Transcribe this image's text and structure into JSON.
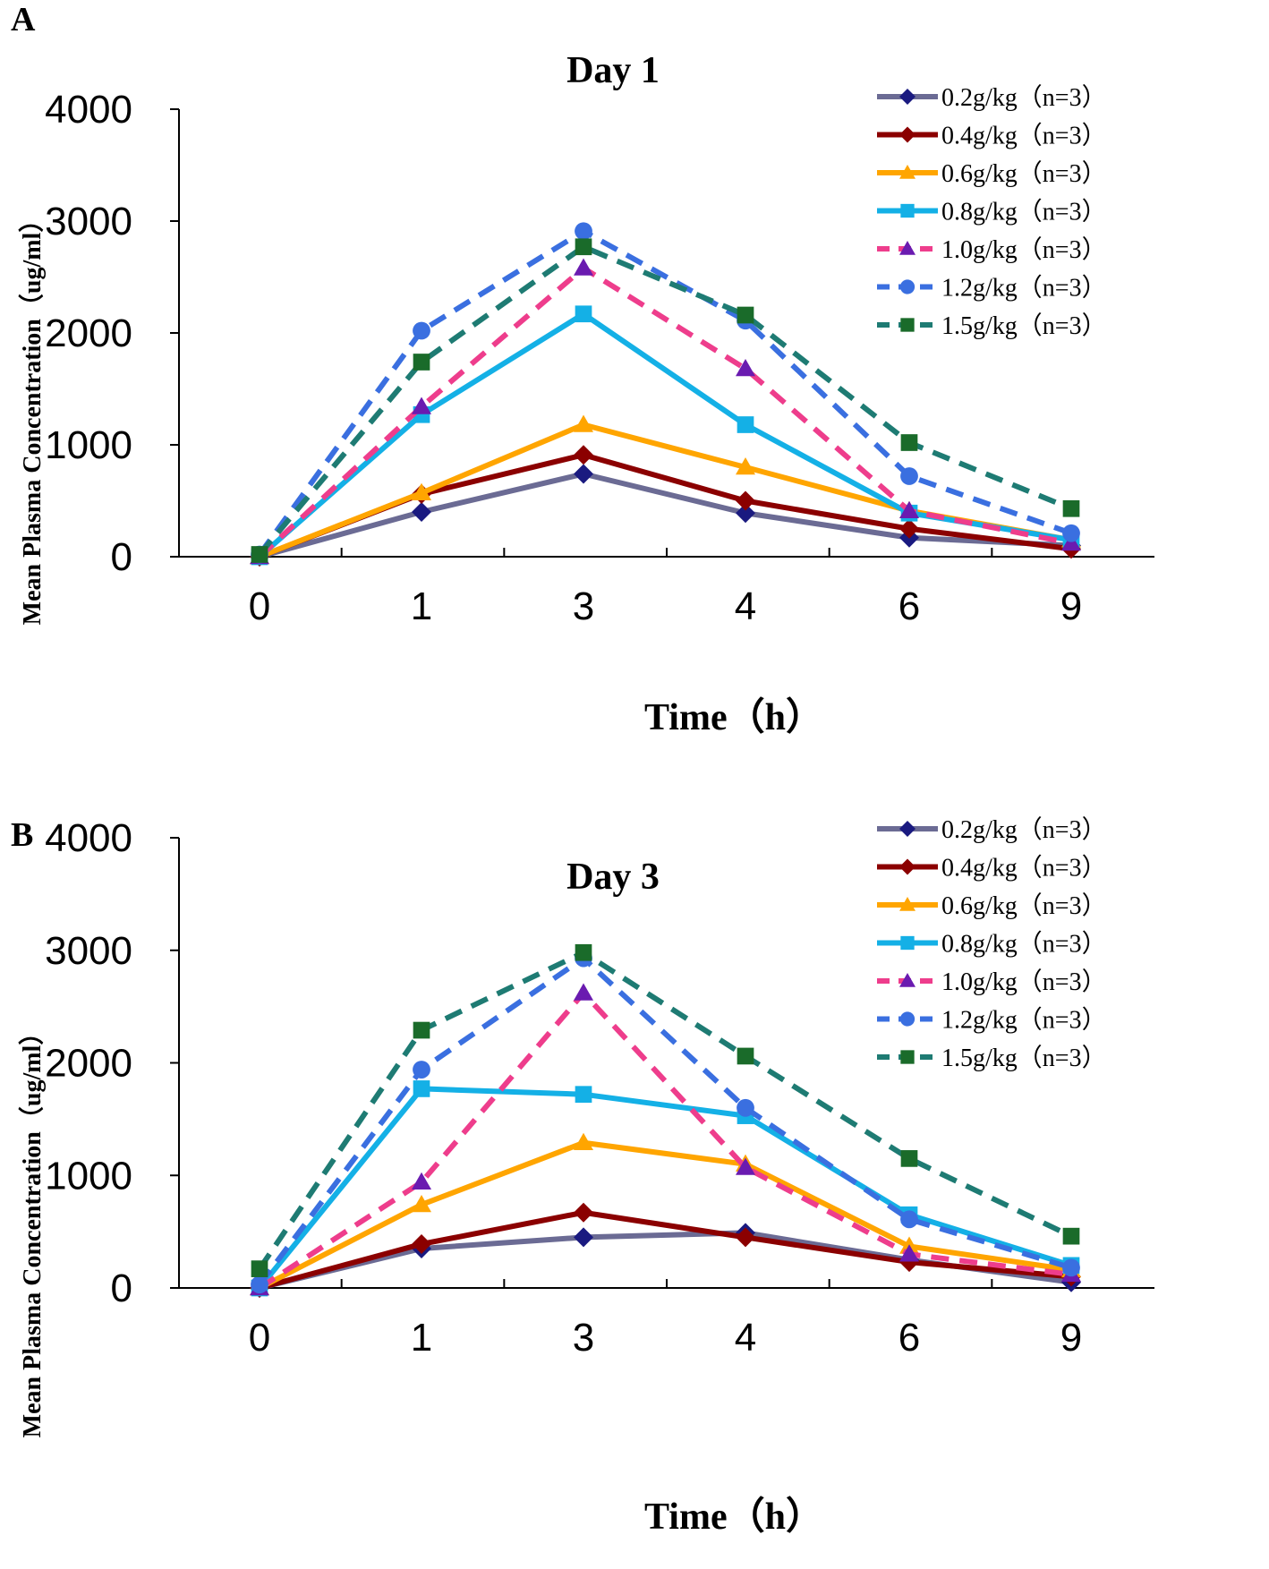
{
  "chart_data": [
    {
      "panel_label": "A",
      "type": "line",
      "title": "Day 1",
      "xlabel": "Time（h）",
      "ylabel": "Mean Plasma Concentration（ug/ml）",
      "categories": [
        "0",
        "1",
        "3",
        "4",
        "6",
        "9"
      ],
      "ylim": [
        0,
        4000
      ],
      "yticks": [
        "0",
        "1000",
        "2000",
        "3000",
        "4000"
      ],
      "legend_position": "top-right",
      "series": [
        {
          "name": "0.2g/kg（n=3）",
          "values": [
            0,
            400,
            740,
            390,
            170,
            100
          ],
          "color": "#6b6b94",
          "marker_color": "#1a1a80",
          "marker": "diamond",
          "dashed": false
        },
        {
          "name": "0.4g/kg（n=3）",
          "values": [
            0,
            560,
            910,
            500,
            250,
            70
          ],
          "color": "#8b0000",
          "marker_color": "#8b0000",
          "marker": "diamond",
          "dashed": false
        },
        {
          "name": "0.6g/kg（n=3）",
          "values": [
            0,
            570,
            1180,
            800,
            410,
            150
          ],
          "color": "#ffa500",
          "marker_color": "#ffa500",
          "marker": "triangle",
          "dashed": false
        },
        {
          "name": "0.8g/kg（n=3）",
          "values": [
            0,
            1270,
            2170,
            1180,
            390,
            150
          ],
          "color": "#14b0e6",
          "marker_color": "#14b0e6",
          "marker": "square",
          "dashed": false
        },
        {
          "name": "1.0g/kg（n=3）",
          "values": [
            0,
            1340,
            2580,
            1680,
            410,
            120
          ],
          "color": "#ee3d8c",
          "marker_color": "#6a1bb0",
          "marker": "triangle",
          "dashed": true
        },
        {
          "name": "1.2g/kg（n=3）",
          "values": [
            20,
            2020,
            2910,
            2110,
            720,
            210
          ],
          "color": "#3a6fe0",
          "marker_color": "#3a6fe0",
          "marker": "circle",
          "dashed": true
        },
        {
          "name": "1.5g/kg（n=3）",
          "values": [
            20,
            1740,
            2770,
            2160,
            1020,
            430
          ],
          "color": "#1e7b73",
          "marker_color": "#1a6b2a",
          "marker": "square",
          "dashed": true
        }
      ]
    },
    {
      "panel_label": "B",
      "type": "line",
      "title": "Day 3",
      "xlabel": "Time（h）",
      "ylabel": "Mean Plasma Concentration（ug/ml）",
      "categories": [
        "0",
        "1",
        "3",
        "4",
        "6",
        "9"
      ],
      "ylim": [
        0,
        4000
      ],
      "yticks": [
        "0",
        "1000",
        "2000",
        "3000",
        "4000"
      ],
      "legend_position": "top-right",
      "series": [
        {
          "name": "0.2g/kg（n=3）",
          "values": [
            0,
            350,
            450,
            490,
            250,
            50
          ],
          "color": "#6b6b94",
          "marker_color": "#1a1a80",
          "marker": "diamond",
          "dashed": false
        },
        {
          "name": "0.4g/kg（n=3）",
          "values": [
            0,
            390,
            670,
            450,
            230,
            100
          ],
          "color": "#8b0000",
          "marker_color": "#8b0000",
          "marker": "diamond",
          "dashed": false
        },
        {
          "name": "0.6g/kg（n=3）",
          "values": [
            0,
            740,
            1290,
            1100,
            370,
            160
          ],
          "color": "#ffa500",
          "marker_color": "#ffa500",
          "marker": "triangle",
          "dashed": false
        },
        {
          "name": "0.8g/kg（n=3）",
          "values": [
            0,
            1770,
            1720,
            1530,
            650,
            200
          ],
          "color": "#14b0e6",
          "marker_color": "#14b0e6",
          "marker": "square",
          "dashed": false
        },
        {
          "name": "1.0g/kg（n=3）",
          "values": [
            0,
            940,
            2620,
            1070,
            300,
            120
          ],
          "color": "#ee3d8c",
          "marker_color": "#6a1bb0",
          "marker": "triangle",
          "dashed": true
        },
        {
          "name": "1.2g/kg（n=3）",
          "values": [
            30,
            1940,
            2930,
            1600,
            610,
            180
          ],
          "color": "#3a6fe0",
          "marker_color": "#3a6fe0",
          "marker": "circle",
          "dashed": true
        },
        {
          "name": "1.5g/kg（n=3）",
          "values": [
            170,
            2290,
            2980,
            2060,
            1150,
            460
          ],
          "color": "#1e7b73",
          "marker_color": "#1a6b2a",
          "marker": "square",
          "dashed": true
        }
      ]
    }
  ]
}
